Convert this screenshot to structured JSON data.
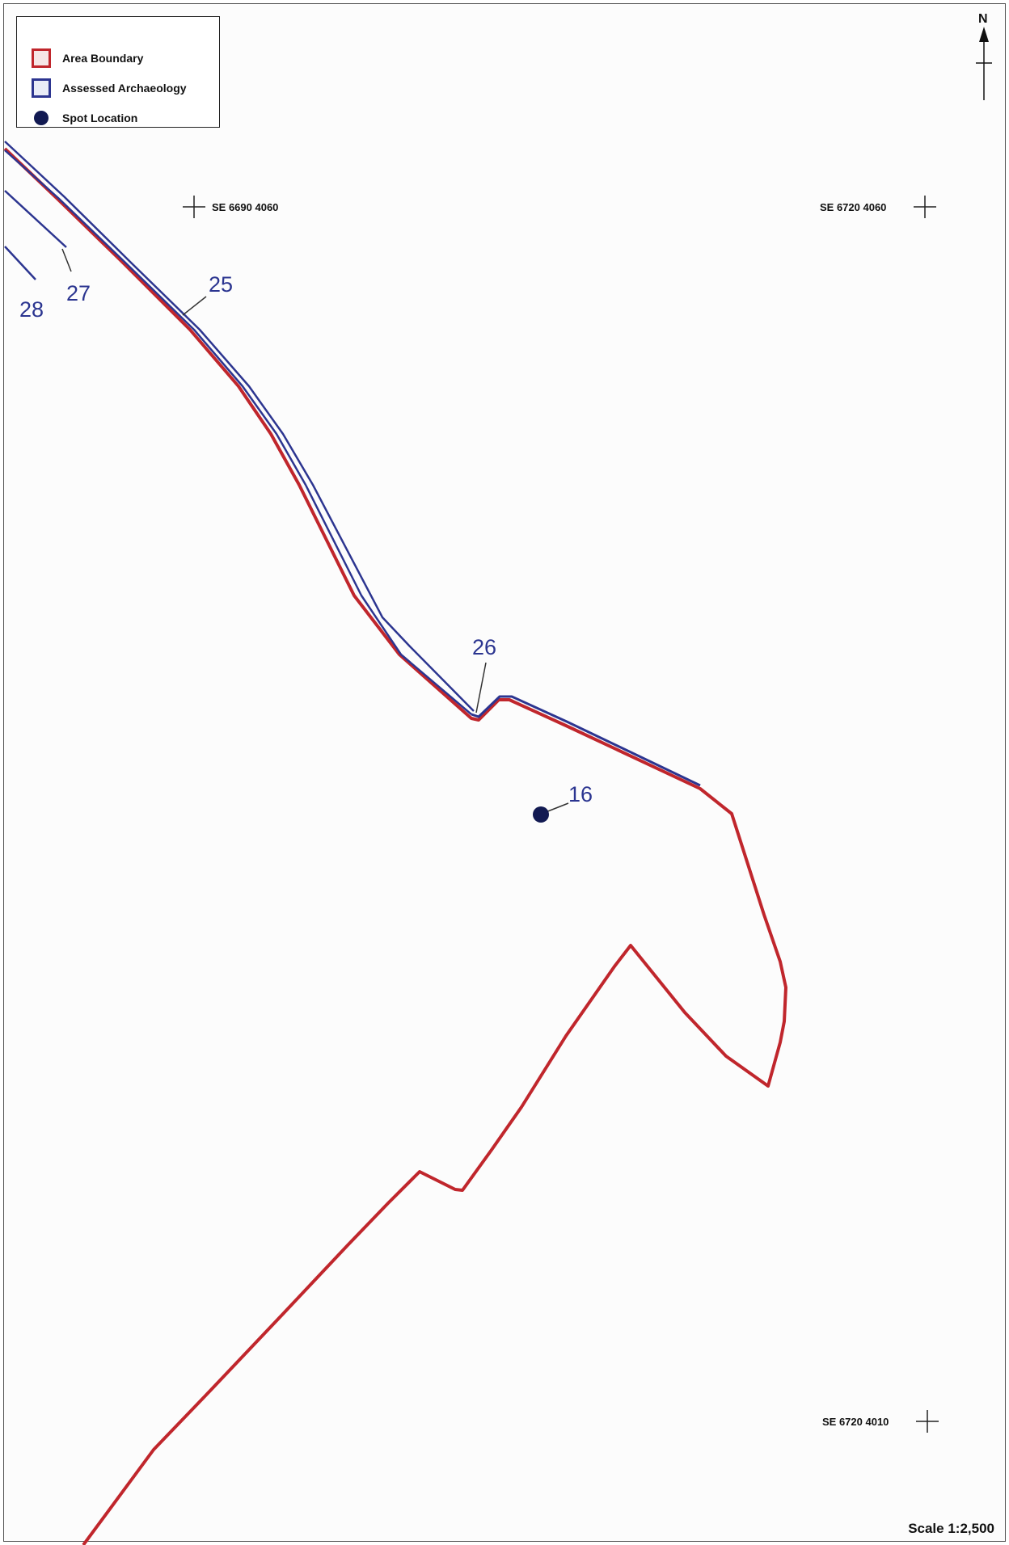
{
  "legend": {
    "items": [
      {
        "label": "Area Boundary",
        "symbol": "red-outline-square",
        "color": "#c0262c"
      },
      {
        "label": "Assessed Archaeology",
        "symbol": "blue-outline-square",
        "color": "#2c3590"
      },
      {
        "label": "Spot Location",
        "symbol": "filled-circle",
        "color": "#121a52"
      }
    ]
  },
  "north_arrow": {
    "label": "N"
  },
  "grid_refs": {
    "top_left": "SE 6690 4060",
    "top_right": "SE 6720 4060",
    "bottom_right": "SE 6720 4010"
  },
  "features": {
    "label_25": "25",
    "label_26": "26",
    "label_27": "27",
    "label_28": "28",
    "label_16": "16"
  },
  "scale": "Scale 1:2,500",
  "colors": {
    "area_boundary": "#c0262c",
    "assessed_archaeology": "#2c3590",
    "spot_location": "#121a52"
  }
}
